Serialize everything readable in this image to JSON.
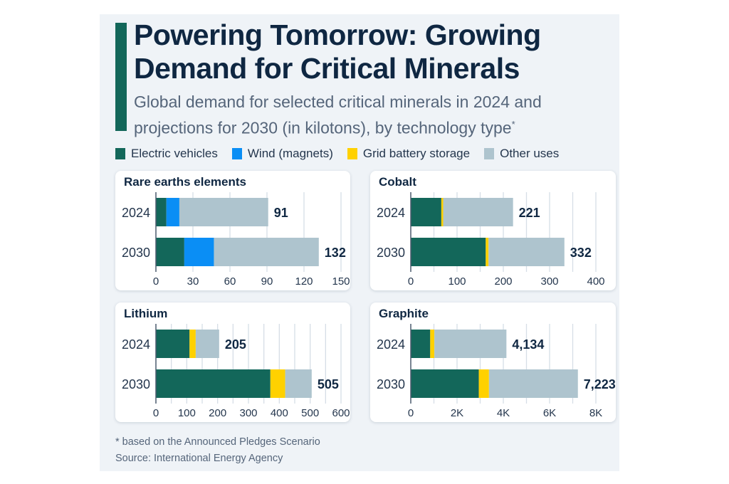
{
  "header": {
    "title": "Powering Tomorrow: Growing Demand for Critical Minerals",
    "subtitle": "Global demand for selected critical minerals in 2024 and projections for 2030 (in kilotons), by technology type",
    "subtitle_marker": "*"
  },
  "legend": [
    {
      "label": "Electric vehicles",
      "color": "#13675a"
    },
    {
      "label": "Wind (magnets)",
      "color": "#0a8ef5"
    },
    {
      "label": "Grid battery storage",
      "color": "#ffd100"
    },
    {
      "label": "Other uses",
      "color": "#aec4ce"
    }
  ],
  "footer": {
    "note": "* based on the Announced Pledges Scenario",
    "source": "Source: International Energy Agency"
  },
  "chart_data": [
    {
      "type": "bar",
      "orientation": "horizontal",
      "stacked": true,
      "title": "Rare earths elements",
      "categories": [
        "2024",
        "2030"
      ],
      "series": [
        {
          "name": "Electric vehicles",
          "values": [
            8.5,
            23
          ]
        },
        {
          "name": "Wind (magnets)",
          "values": [
            10.5,
            24
          ]
        },
        {
          "name": "Grid battery storage",
          "values": [
            0,
            0
          ]
        },
        {
          "name": "Other uses",
          "values": [
            72,
            85
          ]
        }
      ],
      "totals": [
        91,
        132
      ],
      "total_labels": [
        "91",
        "132"
      ],
      "xlim": [
        0,
        150
      ],
      "xticks": [
        0,
        30,
        60,
        90,
        120,
        150
      ],
      "xtick_labels": [
        "0",
        "30",
        "60",
        "90",
        "120",
        "150"
      ],
      "grid": true
    },
    {
      "type": "bar",
      "orientation": "horizontal",
      "stacked": true,
      "title": "Cobalt",
      "categories": [
        "2024",
        "2030"
      ],
      "series": [
        {
          "name": "Electric vehicles",
          "values": [
            66,
            162
          ]
        },
        {
          "name": "Wind (magnets)",
          "values": [
            0,
            0
          ]
        },
        {
          "name": "Grid battery storage",
          "values": [
            4,
            6
          ]
        },
        {
          "name": "Other uses",
          "values": [
            151,
            164
          ]
        }
      ],
      "totals": [
        221,
        332
      ],
      "total_labels": [
        "221",
        "332"
      ],
      "xlim": [
        0,
        400
      ],
      "xticks": [
        0,
        50,
        100,
        150,
        200,
        250,
        300,
        350,
        400
      ],
      "xtick_labels": [
        "0",
        "",
        "100",
        "",
        "200",
        "",
        "300",
        "",
        "400"
      ],
      "grid": true
    },
    {
      "type": "bar",
      "orientation": "horizontal",
      "stacked": true,
      "title": "Lithium",
      "categories": [
        "2024",
        "2030"
      ],
      "series": [
        {
          "name": "Electric vehicles",
          "values": [
            109,
            371
          ]
        },
        {
          "name": "Wind (magnets)",
          "values": [
            0,
            0
          ]
        },
        {
          "name": "Grid battery storage",
          "values": [
            20,
            48
          ]
        },
        {
          "name": "Other uses",
          "values": [
            76,
            86
          ]
        }
      ],
      "totals": [
        205,
        505
      ],
      "total_labels": [
        "205",
        "505"
      ],
      "xlim": [
        0,
        600
      ],
      "xticks": [
        0,
        50,
        100,
        150,
        200,
        250,
        300,
        350,
        400,
        450,
        500,
        550,
        600
      ],
      "xtick_labels": [
        "0",
        "",
        "100",
        "",
        "200",
        "",
        "300",
        "",
        "400",
        "",
        "500",
        "",
        "600"
      ],
      "grid": true
    },
    {
      "type": "bar",
      "orientation": "horizontal",
      "stacked": true,
      "title": "Graphite",
      "categories": [
        "2024",
        "2030"
      ],
      "series": [
        {
          "name": "Electric vehicles",
          "values": [
            840,
            2940
          ]
        },
        {
          "name": "Wind (magnets)",
          "values": [
            0,
            0
          ]
        },
        {
          "name": "Grid battery storage",
          "values": [
            180,
            440
          ]
        },
        {
          "name": "Other uses",
          "values": [
            3114,
            3843
          ]
        }
      ],
      "totals": [
        4134,
        7223
      ],
      "total_labels": [
        "4,134",
        "7,223"
      ],
      "xlim": [
        0,
        8000
      ],
      "xticks": [
        0,
        1000,
        2000,
        3000,
        4000,
        5000,
        6000,
        7000,
        8000
      ],
      "xtick_labels": [
        "0",
        "",
        "2K",
        "",
        "4K",
        "",
        "6K",
        "",
        "8K"
      ],
      "grid": true
    }
  ]
}
